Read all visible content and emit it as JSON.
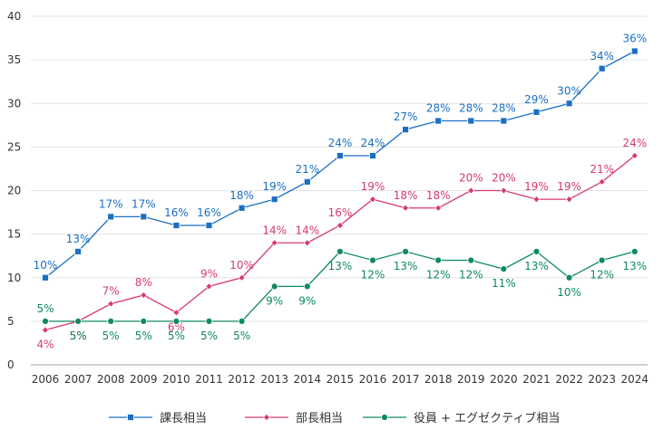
{
  "chart_data": {
    "type": "line",
    "x": [
      "2006",
      "2007",
      "2008",
      "2009",
      "2010",
      "2011",
      "2012",
      "2013",
      "2014",
      "2015",
      "2016",
      "2017",
      "2018",
      "2019",
      "2020",
      "2021",
      "2022",
      "2023",
      "2024"
    ],
    "ylim": [
      0,
      40
    ],
    "yticks": [
      0,
      5,
      10,
      15,
      20,
      25,
      30,
      35,
      40
    ],
    "grid": "horizontal",
    "legend_position": "bottom",
    "series": [
      {
        "name": "課長相当",
        "color": "#1a6fc4",
        "marker": "square",
        "label_position": "above",
        "values": [
          10,
          13,
          17,
          17,
          16,
          16,
          18,
          19,
          21,
          24,
          24,
          27,
          28,
          28,
          28,
          29,
          30,
          34,
          36
        ],
        "labels": [
          "10%",
          "13%",
          "17%",
          "17%",
          "16%",
          "16%",
          "18%",
          "19%",
          "21%",
          "24%",
          "24%",
          "27%",
          "28%",
          "28%",
          "28%",
          "29%",
          "30%",
          "34%",
          "36%"
        ]
      },
      {
        "name": "部長相当",
        "color": "#d63a6e",
        "marker": "diamond",
        "label_position": "mixed",
        "values": [
          4,
          5,
          7,
          8,
          6,
          9,
          10,
          14,
          14,
          16,
          19,
          18,
          18,
          20,
          20,
          19,
          19,
          21,
          24
        ],
        "labels": [
          "4%",
          "5%",
          "7%",
          "8%",
          "6%",
          "9%",
          "10%",
          "14%",
          "14%",
          "16%",
          "19%",
          "18%",
          "18%",
          "20%",
          "20%",
          "19%",
          "19%",
          "21%",
          "24%"
        ]
      },
      {
        "name": "役員 + エグゼクティブ相当",
        "color": "#0f8a5f",
        "marker": "circle",
        "label_position": "mixed",
        "values": [
          5,
          5,
          5,
          5,
          5,
          5,
          5,
          9,
          9,
          13,
          12,
          13,
          12,
          12,
          11,
          13,
          10,
          12,
          13
        ],
        "labels": [
          "5%",
          "5%",
          "5%",
          "5%",
          "5%",
          "5%",
          "5%",
          "9%",
          "9%",
          "13%",
          "12%",
          "13%",
          "12%",
          "12%",
          "11%",
          "13%",
          "10%",
          "12%",
          "13%"
        ]
      }
    ]
  }
}
